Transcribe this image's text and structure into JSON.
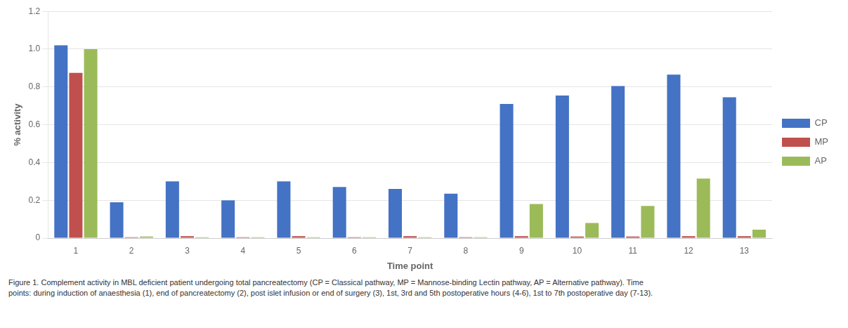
{
  "chart_data": {
    "type": "bar",
    "categories": [
      "1",
      "2",
      "3",
      "4",
      "5",
      "6",
      "7",
      "8",
      "9",
      "10",
      "11",
      "12",
      "13"
    ],
    "series": [
      {
        "name": "CP",
        "color": "#4472C4",
        "values": [
          1.02,
          0.19,
          0.3,
          0.2,
          0.3,
          0.27,
          0.26,
          0.235,
          0.71,
          0.755,
          0.805,
          0.865,
          0.745
        ]
      },
      {
        "name": "MP",
        "color": "#C0504D",
        "values": [
          0.875,
          0.005,
          0.01,
          0.005,
          0.01,
          0.005,
          0.01,
          0.005,
          0.01,
          0.008,
          0.008,
          0.01,
          0.01
        ]
      },
      {
        "name": "AP",
        "color": "#9BBB59",
        "values": [
          1.0,
          0.008,
          0.005,
          0.005,
          0.005,
          0.005,
          0.005,
          0.005,
          0.18,
          0.08,
          0.17,
          0.315,
          0.045
        ]
      }
    ],
    "xlabel": "Time point",
    "ylabel": "% activity",
    "ylim": [
      0,
      1.2
    ],
    "yticks": [
      0,
      0.2,
      0.4,
      0.6,
      0.8,
      {
        "value": 1.0,
        "label": "1.0"
      },
      1.2
    ],
    "grid": true,
    "legend": "right",
    "caption": "Figure 1. Complement activity in MBL deficient patient undergoing total pancreatectomy (CP = Classical pathway, MP = Mannose-binding Lectin pathway, AP = Alternative pathway). Time\npoints: during induction of anaesthesia (1), end of pancreatectomy (2), post islet infusion or end of surgery (3), 1st, 3rd and 5th postoperative hours (4-6), 1st to 7th postoperative day (7-13)."
  }
}
